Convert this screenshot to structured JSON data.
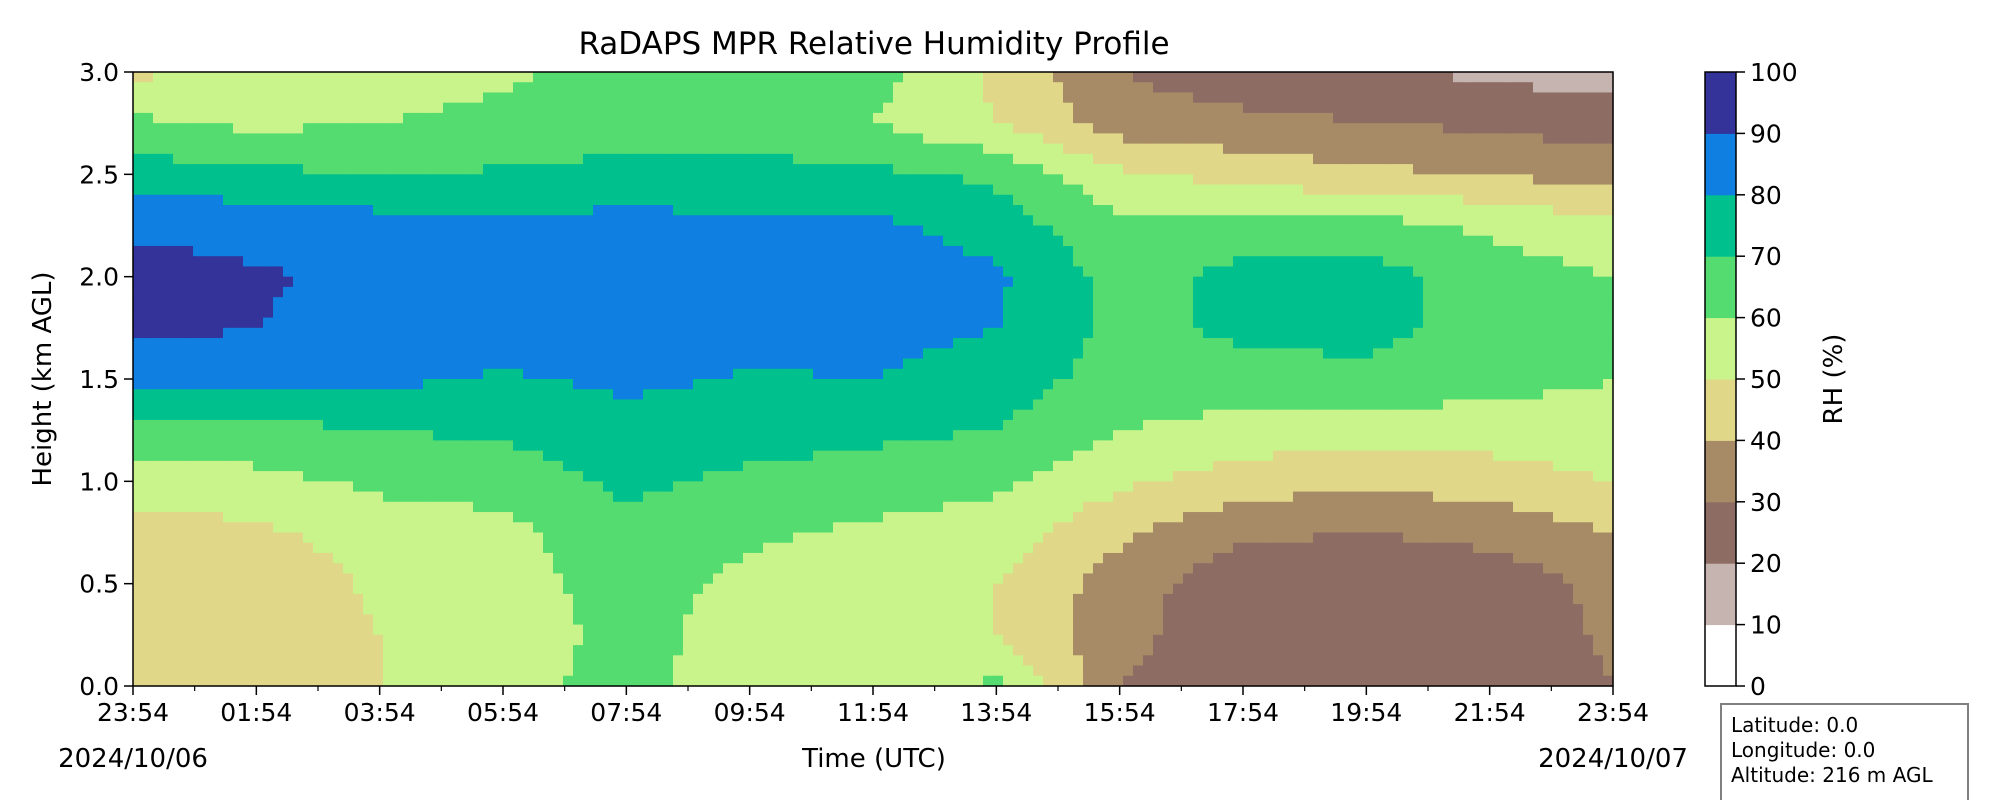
{
  "chart_data": {
    "type": "heatmap",
    "title": "RaDAPS MPR Relative Humidity Profile",
    "xlabel": "Time (UTC)",
    "ylabel": "Height (km AGL)",
    "x_tick_labels": [
      "23:54",
      "01:54",
      "03:54",
      "05:54",
      "07:54",
      "09:54",
      "11:54",
      "13:54",
      "15:54",
      "17:54",
      "19:54",
      "21:54",
      "23:54"
    ],
    "x_date_start": "2024/10/06",
    "x_date_end": "2024/10/07",
    "y_ticks": [
      "0.0",
      "0.5",
      "1.0",
      "1.5",
      "2.0",
      "2.5",
      "3.0"
    ],
    "ylim": [
      0.0,
      3.0
    ],
    "colorbar": {
      "label": "RH (%)",
      "ticks": [
        "0",
        "10",
        "20",
        "30",
        "40",
        "50",
        "60",
        "70",
        "80",
        "90",
        "100"
      ],
      "levels": [
        0,
        10,
        20,
        30,
        40,
        50,
        60,
        70,
        80,
        90,
        100
      ],
      "colors": [
        "#ffffff",
        "#c6b4b0",
        "#8d6c64",
        "#a78b66",
        "#e1d789",
        "#c8f48b",
        "#54dc71",
        "#00c08d",
        "#0f7fe2",
        "#333399"
      ]
    },
    "time_hours": [
      0,
      2,
      4,
      6,
      8,
      10,
      12,
      14,
      16,
      18,
      20,
      22,
      24
    ],
    "heights_km": [
      0.0,
      0.25,
      0.5,
      0.75,
      1.0,
      1.25,
      1.5,
      1.75,
      2.0,
      2.25,
      2.5,
      2.75,
      3.0
    ],
    "rh": [
      [
        42,
        45,
        50,
        55,
        65,
        52,
        55,
        62,
        30,
        22,
        20,
        20,
        30
      ],
      [
        42,
        43,
        50,
        53,
        64,
        55,
        52,
        50,
        34,
        22,
        21,
        22,
        32
      ],
      [
        40,
        42,
        52,
        55,
        65,
        57,
        52,
        50,
        35,
        23,
        22,
        24,
        33
      ],
      [
        45,
        48,
        55,
        57,
        68,
        62,
        58,
        55,
        42,
        32,
        30,
        33,
        40
      ],
      [
        55,
        57,
        62,
        64,
        72,
        68,
        66,
        62,
        52,
        45,
        42,
        45,
        50
      ],
      [
        65,
        67,
        70,
        72,
        77,
        74,
        72,
        70,
        60,
        56,
        55,
        55,
        57
      ],
      [
        82,
        83,
        82,
        79,
        82,
        79,
        80,
        75,
        66,
        66,
        68,
        63,
        60
      ],
      [
        93,
        90,
        87,
        84,
        86,
        85,
        84,
        80,
        67,
        72,
        73,
        66,
        62
      ],
      [
        94,
        91,
        88,
        86,
        90,
        86,
        87,
        82,
        66,
        73,
        74,
        65,
        60
      ],
      [
        88,
        87,
        84,
        82,
        84,
        82,
        82,
        75,
        62,
        64,
        64,
        58,
        53
      ],
      [
        75,
        72,
        70,
        71,
        72,
        73,
        72,
        68,
        52,
        46,
        42,
        40,
        35
      ],
      [
        62,
        58,
        60,
        63,
        68,
        66,
        60,
        50,
        35,
        33,
        30,
        28,
        25
      ],
      [
        48,
        52,
        55,
        58,
        65,
        68,
        64,
        48,
        30,
        23,
        22,
        18,
        15
      ]
    ],
    "info_box": {
      "latitude": "Latitude: 0.0",
      "longitude": "Longitude: 0.0",
      "altitude": "Altitude: 216 m AGL"
    }
  }
}
